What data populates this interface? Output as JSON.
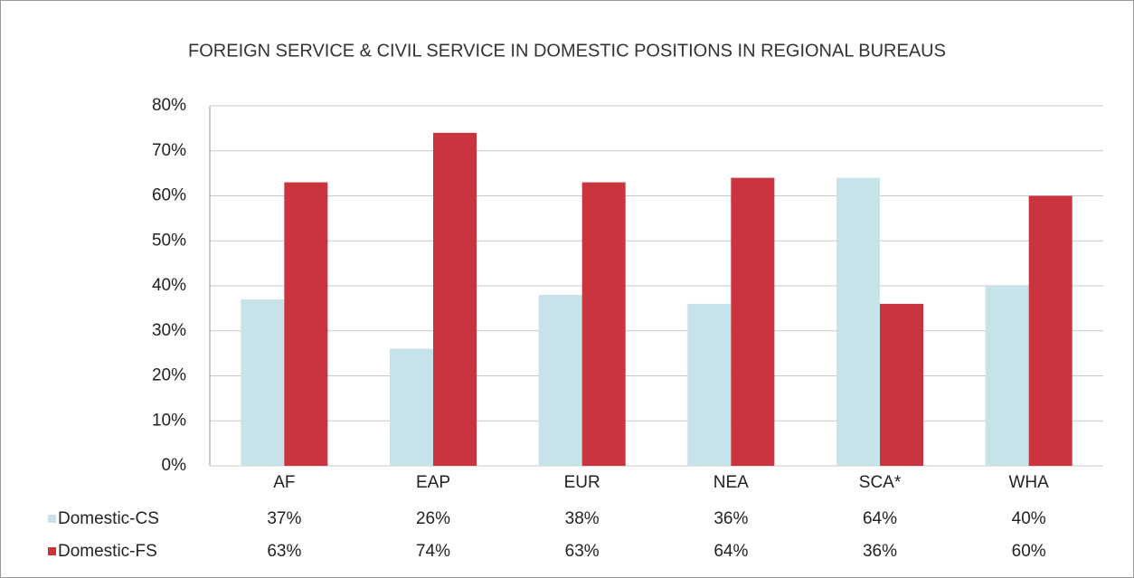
{
  "chart_data": {
    "type": "bar",
    "title": "FOREIGN SERVICE & CIVIL SERVICE IN DOMESTIC POSITIONS IN REGIONAL BUREAUS",
    "categories": [
      "AF",
      "EAP",
      "EUR",
      "NEA",
      "SCA*",
      "WHA"
    ],
    "series": [
      {
        "name": "Domestic-CS",
        "color": "#c5e3e8",
        "values": [
          37,
          26,
          38,
          36,
          64,
          40
        ],
        "value_labels": [
          "37%",
          "26%",
          "38%",
          "36%",
          "64%",
          "40%"
        ]
      },
      {
        "name": "Domestic-FS",
        "color": "#c9343f",
        "values": [
          63,
          74,
          63,
          64,
          36,
          60
        ],
        "value_labels": [
          "63%",
          "74%",
          "63%",
          "64%",
          "36%",
          "60%"
        ]
      }
    ],
    "ylim": [
      0,
      80
    ],
    "yticks": [
      {
        "value": 0,
        "label": "0%"
      },
      {
        "value": 10,
        "label": "10%"
      },
      {
        "value": 20,
        "label": "20%"
      },
      {
        "value": 30,
        "label": "30%"
      },
      {
        "value": 40,
        "label": "40%"
      },
      {
        "value": 50,
        "label": "50%"
      },
      {
        "value": 60,
        "label": "60%"
      },
      {
        "value": 70,
        "label": "70%"
      },
      {
        "value": 80,
        "label": "80%"
      }
    ],
    "grid": true
  }
}
